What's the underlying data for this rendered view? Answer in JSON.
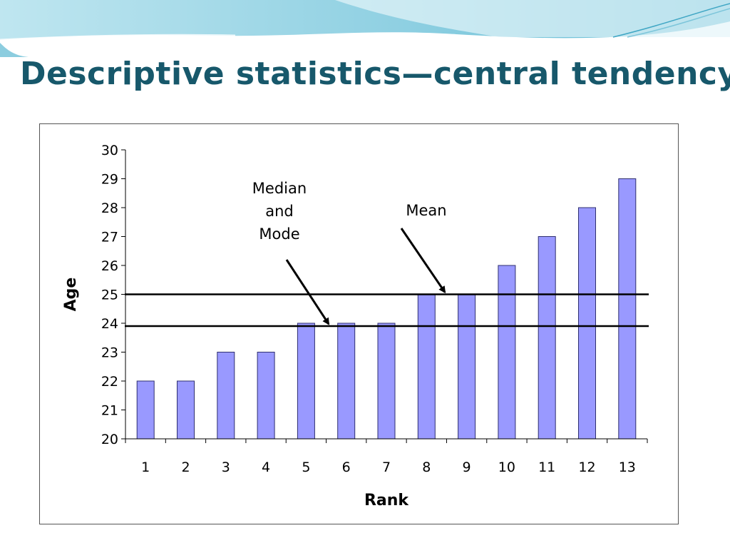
{
  "slide": {
    "title": "Descriptive statistics—central tendency"
  },
  "chart_data": {
    "type": "bar",
    "title": "",
    "xlabel": "Rank",
    "ylabel": "Age",
    "categories": [
      "1",
      "2",
      "3",
      "4",
      "5",
      "6",
      "7",
      "8",
      "9",
      "10",
      "11",
      "12",
      "13"
    ],
    "values": [
      22,
      22,
      23,
      23,
      24,
      24,
      24,
      25,
      25,
      26,
      27,
      28,
      29
    ],
    "ylim": [
      20,
      30
    ],
    "yticks": [
      "20",
      "21",
      "22",
      "23",
      "24",
      "25",
      "26",
      "27",
      "28",
      "29",
      "30"
    ],
    "grid": false,
    "legend": "none",
    "bar_color": "#9999ff",
    "reference_lines": [
      {
        "name": "Mean",
        "value": 25
      },
      {
        "name": "Median and Mode",
        "value": 23.9
      }
    ],
    "annotations": [
      {
        "lines": [
          "Median",
          "and",
          "Mode"
        ],
        "points_to": "Median and Mode"
      },
      {
        "lines": [
          "Mean"
        ],
        "points_to": "Mean"
      }
    ]
  },
  "colors": {
    "title": "#17586b",
    "banner_light": "#d6eff5",
    "banner_mid": "#8fcfe1",
    "banner_dark": "#4fb3cf"
  }
}
